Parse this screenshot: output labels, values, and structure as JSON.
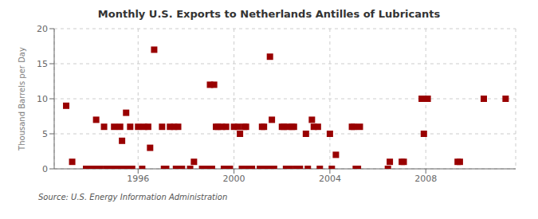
{
  "chart_data": {
    "type": "scatter",
    "title": "Monthly U.S. Exports to Netherlands Antilles of Lubricants",
    "ylabel": "Thousand Barrels per Day",
    "source": "Source: U.S. Energy Information Administration",
    "color": "#990000",
    "marker": "square",
    "grid": true,
    "xlim": [
      1992.5,
      2011.75
    ],
    "xticks": [
      1996,
      2000,
      2004,
      2008
    ],
    "ylim": [
      0,
      20
    ],
    "yticks": [
      0,
      5,
      10,
      15,
      20
    ],
    "x": [
      1993.0,
      1993.25,
      1993.83,
      1994.0,
      1994.17,
      1994.25,
      1994.42,
      1994.58,
      1994.67,
      1994.75,
      1994.83,
      1994.92,
      1995.0,
      1995.08,
      1995.17,
      1995.25,
      1995.33,
      1995.42,
      1995.5,
      1995.58,
      1995.67,
      1995.75,
      1996.0,
      1996.17,
      1996.25,
      1996.42,
      1996.5,
      1996.67,
      1997.0,
      1997.08,
      1997.17,
      1997.33,
      1997.5,
      1997.58,
      1997.67,
      1997.75,
      1997.83,
      1998.17,
      1998.33,
      1998.67,
      1998.83,
      1999.0,
      1999.08,
      1999.17,
      1999.25,
      1999.33,
      1999.5,
      1999.58,
      1999.67,
      1999.75,
      1999.83,
      2000.0,
      2000.17,
      2000.25,
      2000.33,
      2000.42,
      2000.5,
      2000.58,
      2000.67,
      2000.75,
      2001.08,
      2001.17,
      2001.25,
      2001.33,
      2001.42,
      2001.5,
      2001.58,
      2001.67,
      2002.0,
      2002.08,
      2002.17,
      2002.25,
      2002.33,
      2002.42,
      2002.5,
      2002.58,
      2002.67,
      2002.75,
      2003.0,
      2003.08,
      2003.25,
      2003.33,
      2003.5,
      2003.58,
      2004.0,
      2004.08,
      2004.25,
      2004.92,
      2005.0,
      2005.08,
      2005.17,
      2005.25,
      2006.42,
      2006.5,
      2007.0,
      2007.08,
      2007.83,
      2007.92,
      2008.08,
      2009.33,
      2009.42,
      2010.42,
      2011.33
    ],
    "values": [
      9,
      1,
      0,
      0,
      0,
      7,
      0,
      6,
      0,
      0,
      0,
      0,
      6,
      0,
      0,
      6,
      4,
      0,
      8,
      0,
      6,
      0,
      6,
      0,
      6,
      6,
      3,
      17,
      6,
      0,
      0,
      6,
      6,
      0,
      6,
      0,
      0,
      0,
      1,
      0,
      0,
      12,
      0,
      12,
      6,
      6,
      6,
      0,
      6,
      0,
      0,
      6,
      6,
      5,
      0,
      6,
      6,
      0,
      0,
      0,
      0,
      6,
      6,
      0,
      0,
      16,
      7,
      0,
      6,
      6,
      0,
      6,
      0,
      6,
      6,
      0,
      0,
      0,
      5,
      0,
      7,
      6,
      6,
      0,
      5,
      0,
      2,
      6,
      6,
      0,
      0,
      6,
      0,
      1,
      1,
      1,
      10,
      5,
      10,
      1,
      1,
      10,
      10
    ]
  }
}
